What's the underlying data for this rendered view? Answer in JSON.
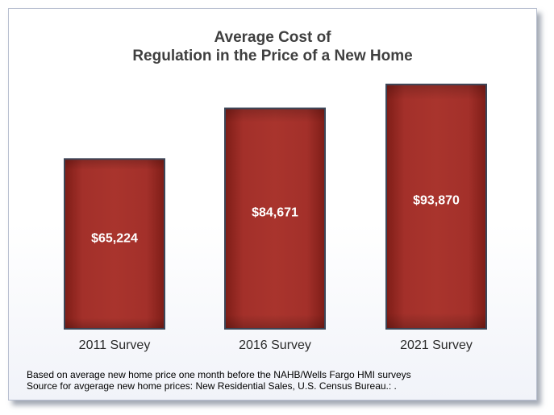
{
  "chart_data": {
    "type": "bar",
    "title_lines": [
      "Average Cost of",
      "Regulation in the Price of a New Home"
    ],
    "categories": [
      "2011 Survey",
      "2016 Survey",
      "2021 Survey"
    ],
    "values": [
      65224,
      84671,
      93870
    ],
    "data_labels": [
      "$65,224",
      "$84,671",
      "$93,870"
    ],
    "xlabel": "",
    "ylabel": "",
    "ylim": [
      0,
      100000
    ],
    "grid": false,
    "legend": "none",
    "bar_color": "#9e2b24",
    "bar_border_color": "#3c4658"
  },
  "notes": [
    "Based on average  new home price one month before the NAHB/Wells Fargo HMI surveys",
    "Source for avgerage  new home prices: New Residential Sales, U.S. Census Bureau.: ."
  ]
}
